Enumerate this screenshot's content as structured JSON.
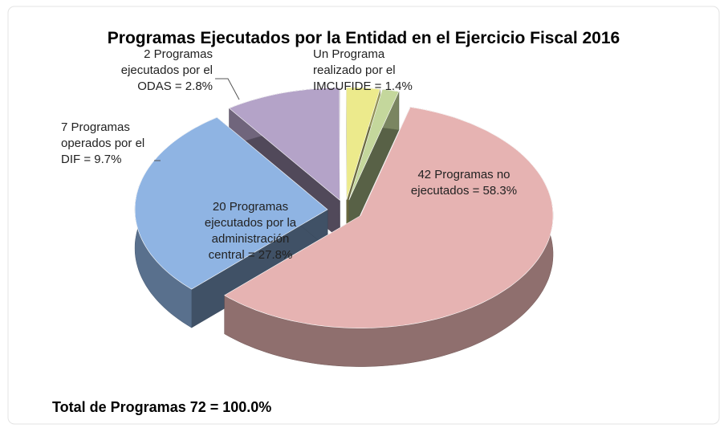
{
  "chart_data": {
    "type": "pie3d",
    "title": "Programas  Ejecutados por la Entidad en el Ejercicio Fiscal 2016",
    "values": [
      58.3,
      27.8,
      9.7,
      2.8,
      1.4
    ],
    "value_labels": [
      "42 Programas no ejecutados = 58.3%",
      "20 Programas ejecutados por la administración central = 27.8%",
      "7 Programas operados por el DIF = 9.7%",
      "2 Programas ejecutados por el ODAS = 2.8%",
      "Un Programa realizado por el IMCUFIDE = 1.4%"
    ],
    "colors": [
      "#e6b3b2",
      "#8fb4e3",
      "#b4a3c8",
      "#ecea8c",
      "#c4d79c"
    ],
    "total_label": "Total de Programas 72 = 100.0%"
  }
}
